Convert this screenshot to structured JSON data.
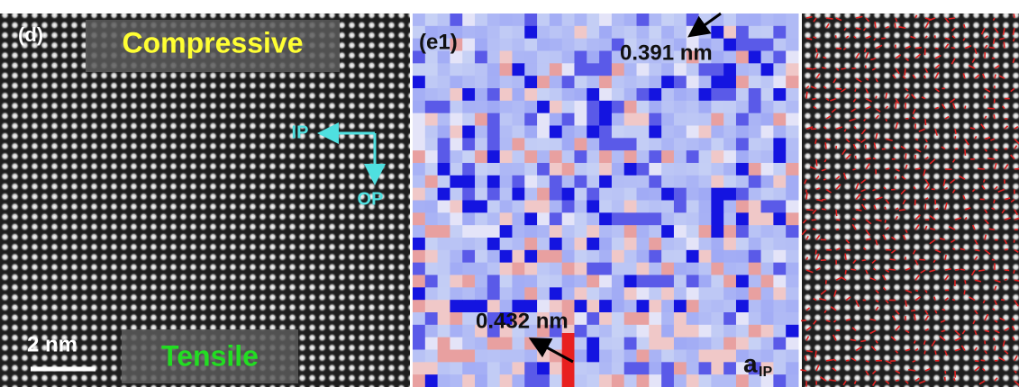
{
  "panel_d": {
    "label": "(d)",
    "top_label": "Compressive",
    "bottom_label": "Tensile",
    "scale_bar": "2 nm",
    "axis_in_plane": "IP",
    "axis_out_of_plane": "OP"
  },
  "panel_e1": {
    "label": "(e1)",
    "max_annotation": "0.391 nm",
    "min_annotation": "0.432 nm",
    "quantity": {
      "main": "a",
      "sub": "IP"
    }
  }
}
